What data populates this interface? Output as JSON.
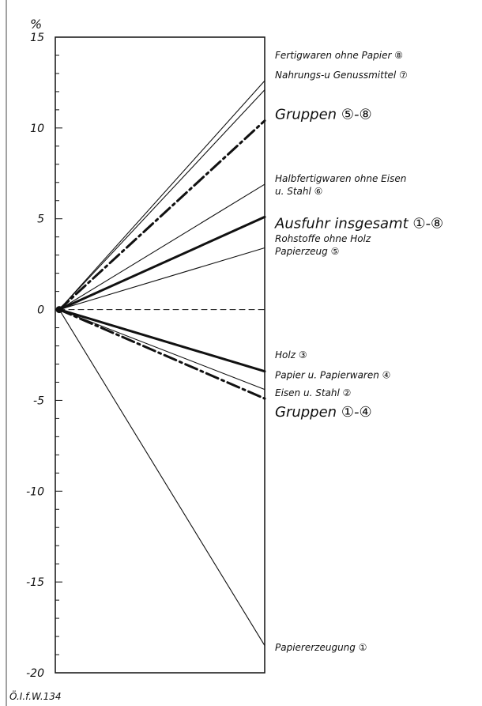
{
  "chart_data": {
    "type": "line",
    "unit_label": "%",
    "source": "Ö.I.f.W.134",
    "ylim": [
      -20,
      15
    ],
    "y_ticks": [
      "15",
      "10",
      "5",
      "0",
      "-5",
      "-10",
      "-15",
      "-20"
    ],
    "y_tick_values": [
      15,
      10,
      5,
      0,
      -5,
      -10,
      -15,
      -20
    ],
    "x": [
      0,
      1
    ],
    "series": [
      {
        "values": [
          0,
          12.6
        ],
        "style": "thin-solid"
      },
      {
        "values": [
          0,
          12.1
        ],
        "style": "thin-solid"
      },
      {
        "values": [
          0,
          10.4
        ],
        "style": "dash-dot-bold"
      },
      {
        "values": [
          0,
          6.9
        ],
        "style": "thin-solid"
      },
      {
        "values": [
          0,
          5.1
        ],
        "style": "bold-solid"
      },
      {
        "values": [
          0,
          3.4
        ],
        "style": "thin-solid"
      },
      {
        "values": [
          0,
          0
        ],
        "style": "dashed"
      },
      {
        "values": [
          0,
          -3.4
        ],
        "style": "bold-solid"
      },
      {
        "values": [
          0,
          -4.4
        ],
        "style": "thin-solid"
      },
      {
        "values": [
          0,
          -4.9
        ],
        "style": "dash-dot-bold"
      },
      {
        "values": [
          0,
          -18.5
        ],
        "style": "thin-solid"
      }
    ],
    "annotations": [
      {
        "lines": [
          "Fertigwaren ohne Papier ⑧"
        ],
        "size": "small",
        "y": 14.0
      },
      {
        "lines": [
          "Nahrungs-u Genussmittel ⑦"
        ],
        "size": "small",
        "y": 12.9
      },
      {
        "lines": [
          "Gruppen ⑤-⑧"
        ],
        "size": "large",
        "y": 10.8
      },
      {
        "lines": [
          "Halbfertigwaren ohne Eisen",
          "u. Stahl ⑥"
        ],
        "size": "small",
        "y": 7.2
      },
      {
        "lines": [
          "Ausfuhr insgesamt ①-⑧"
        ],
        "size": "large",
        "y": 4.8
      },
      {
        "lines": [
          "Rohstoffe ohne Holz",
          "Papierzeug ⑤"
        ],
        "size": "small",
        "y": 3.9
      },
      {
        "lines": [
          "Holz ③"
        ],
        "size": "small",
        "y": -2.5
      },
      {
        "lines": [
          "Papier u. Papierwaren ④"
        ],
        "size": "small",
        "y": -3.6
      },
      {
        "lines": [
          "Eisen u. Stahl ②"
        ],
        "size": "small",
        "y": -4.6
      },
      {
        "lines": [
          "Gruppen ①-④"
        ],
        "size": "large",
        "y": -5.6
      },
      {
        "lines": [
          "Papiererzeugung ①"
        ],
        "size": "small",
        "y": -18.6
      }
    ]
  }
}
